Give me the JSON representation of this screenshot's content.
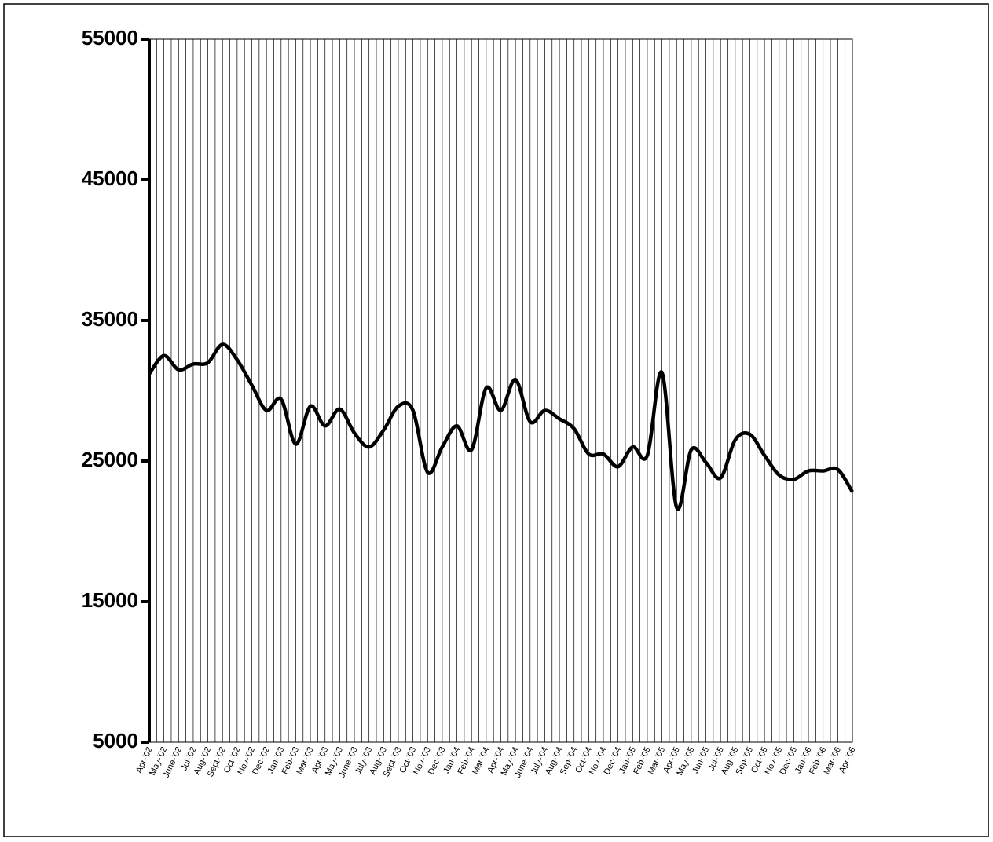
{
  "chart_data": {
    "type": "line",
    "categories": [
      "Apr-'02",
      "May-'02",
      "June-'02",
      "Jul-'02",
      "Aug-'02",
      "Sept-'02",
      "Oct-'02",
      "Nov-'02",
      "Dec-'02",
      "Jan-'03",
      "Feb-'03",
      "Mar-'03",
      "Apr-'03",
      "May-'03",
      "June-'03",
      "July-'03",
      "Aug-'03",
      "Sept-'03",
      "Oct-'03",
      "Nov-'03",
      "Dec-'03",
      "Jan-'04",
      "Feb-'04",
      "Mar-'04",
      "Apr-'04",
      "May-'04",
      "June-'04",
      "July-'04",
      "Aug-'04",
      "Sep-'04",
      "Oct-'04",
      "Nov-'04",
      "Dec-'04",
      "Jan-'05",
      "Feb-'05",
      "Mar-'05",
      "Apr-'05",
      "May-'05",
      "Jun-'05",
      "Jul-'05",
      "Aug-'05",
      "Sep-'05",
      "Oct-'05",
      "Nov-'05",
      "Dec-'05",
      "Jan-'06",
      "Feb-'06",
      "Mar-'06",
      "Apr-'06"
    ],
    "values": [
      31200,
      32500,
      31500,
      31900,
      32000,
      33300,
      32200,
      30400,
      28600,
      29400,
      26200,
      28900,
      27500,
      28700,
      27000,
      26000,
      27200,
      28900,
      28600,
      24200,
      26000,
      27500,
      25800,
      30200,
      28600,
      30800,
      27800,
      28600,
      28000,
      27300,
      25500,
      25500,
      24600,
      26000,
      25400,
      31300,
      21700,
      25800,
      24900,
      23800,
      26500,
      26900,
      25400,
      24000,
      23700,
      24300,
      24300,
      24400,
      22800
    ],
    "color": "#000000",
    "ylim": [
      5000,
      55000
    ],
    "yticks": [
      5000,
      15000,
      25000,
      35000,
      45000,
      55000
    ],
    "grid": true
  }
}
